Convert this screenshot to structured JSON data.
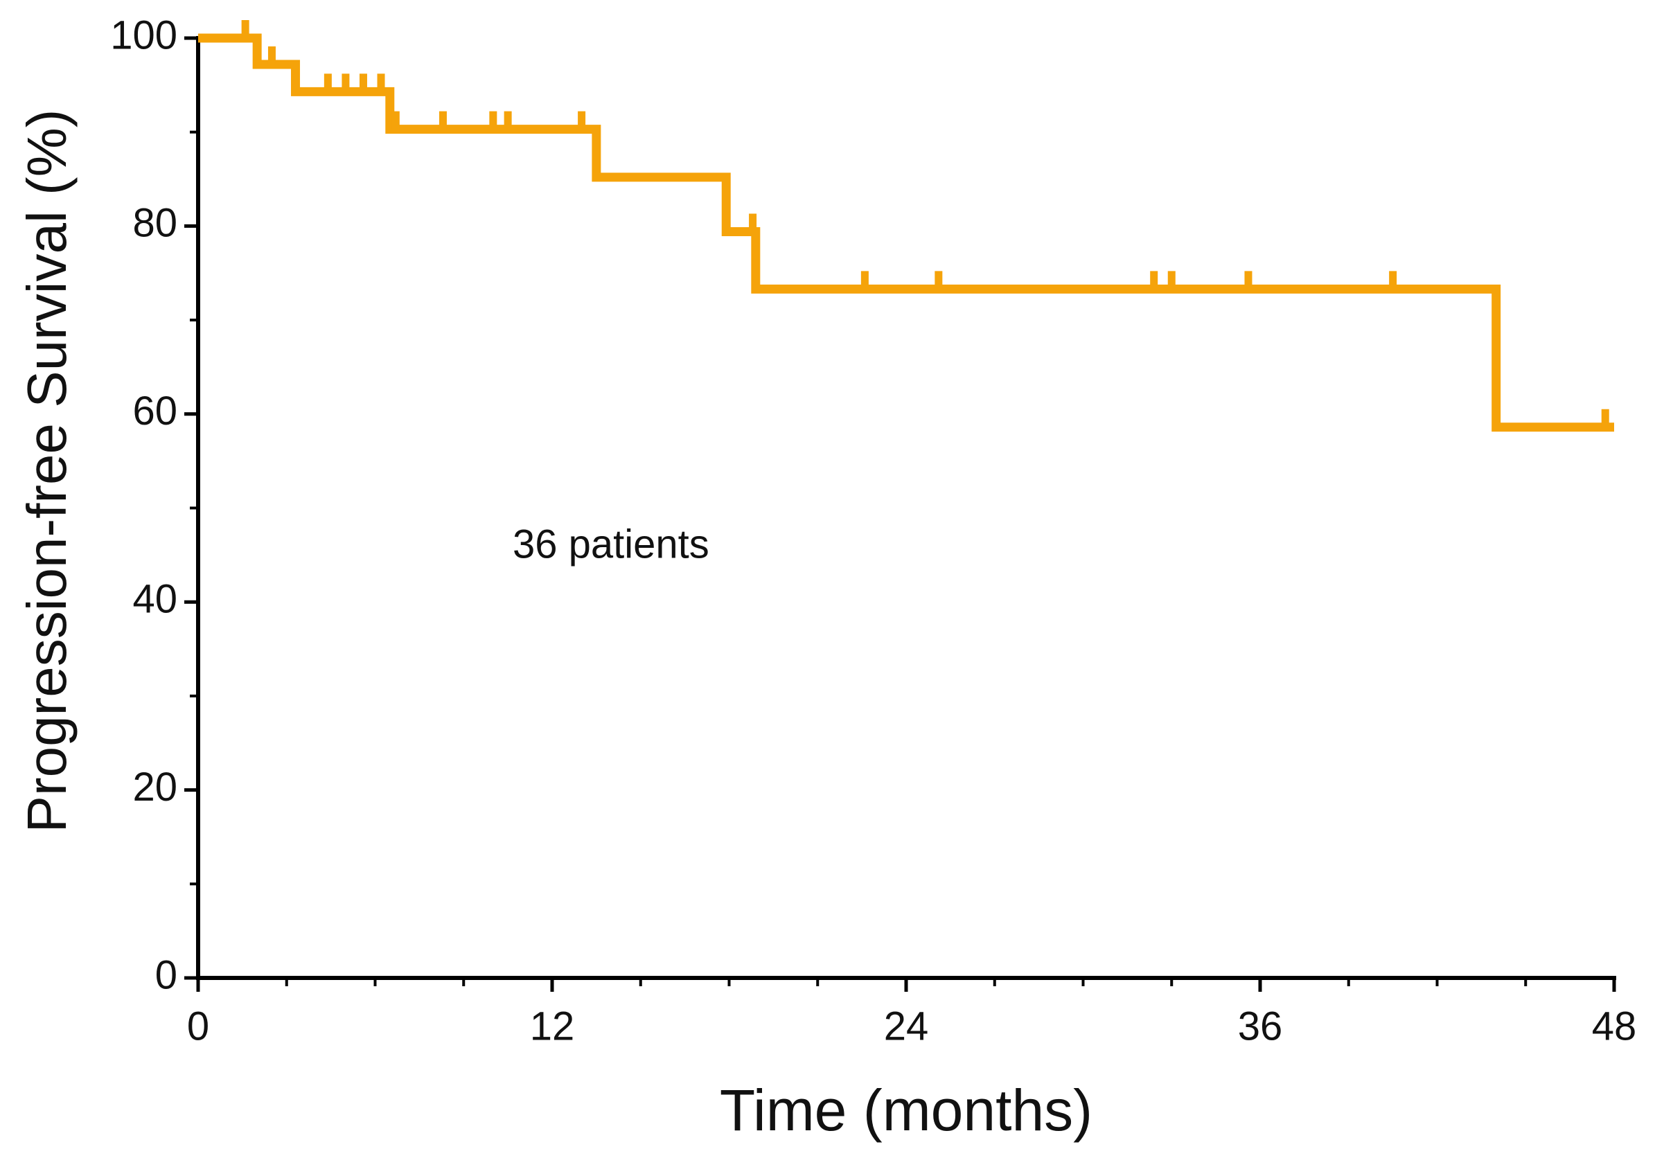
{
  "chart_data": {
    "type": "step",
    "xlabel": "Time (months)",
    "ylabel": "Progression-free Survival (%)",
    "annotation": "36 patients",
    "xlim": [
      0,
      48
    ],
    "ylim": [
      0,
      100
    ],
    "xticks": [
      0,
      12,
      24,
      36,
      48
    ],
    "yticks": [
      0,
      20,
      40,
      60,
      80,
      100
    ],
    "xticks_minor": [
      3,
      6,
      9,
      15,
      18,
      21,
      27,
      30,
      33,
      39,
      42,
      45
    ],
    "yticks_minor": [
      10,
      30,
      50,
      70,
      90
    ],
    "series": [
      {
        "color": "#f5a30a",
        "x": [
          0,
          2,
          2,
          3.3,
          3.3,
          6.5,
          6.5,
          13.5,
          13.5,
          17.9,
          17.9,
          18.9,
          18.9,
          44,
          44,
          48
        ],
        "values": [
          100,
          100,
          97.2,
          97.2,
          94.3,
          94.3,
          90.3,
          90.3,
          85.2,
          85.2,
          79.4,
          79.4,
          73.3,
          73.3,
          58.6,
          58.6
        ]
      }
    ],
    "censored": {
      "x": [
        1.6,
        2.5,
        4.4,
        5.0,
        5.6,
        6.2,
        6.7,
        8.3,
        10.0,
        10.5,
        13.0,
        18.8,
        22.6,
        25.1,
        32.4,
        33.0,
        35.6,
        40.5,
        47.7
      ],
      "values": [
        100,
        97.2,
        94.3,
        94.3,
        94.3,
        94.3,
        90.3,
        90.3,
        90.3,
        90.3,
        90.3,
        79.4,
        73.3,
        73.3,
        73.3,
        73.3,
        73.3,
        73.3,
        58.6
      ]
    }
  }
}
